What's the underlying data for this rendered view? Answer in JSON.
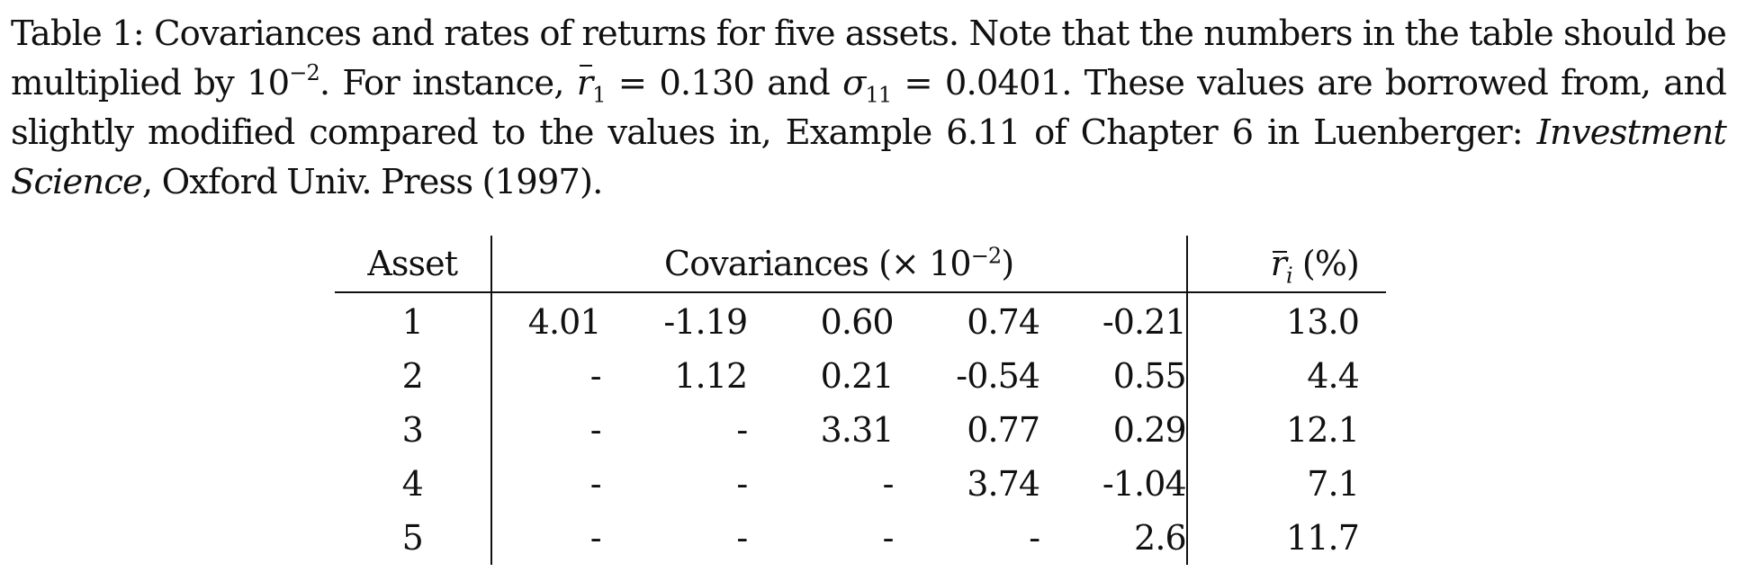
{
  "caption": {
    "label": "Table 1:",
    "text1": " Covariances and rates of returns for five assets. Note that the numbers in the table should be multiplied by ",
    "exponent_base": "10",
    "exponent": "−2",
    "text2": ". For instance, ",
    "r_symbol": "r",
    "r_sub": "1",
    "eq1": " = 0.130 and ",
    "sigma_symbol": "σ",
    "sigma_sub": "11",
    "eq2": " = 0.0401. These values are borrowed from, and slightly modified compared to the values in, Example 6.11 of Chapter 6 in Luenberger: ",
    "book_title": "Investment Science",
    "text3": ", Oxford Univ. Press (1997)."
  },
  "table": {
    "header": {
      "asset": "Asset",
      "covariances_prefix": "Covariances (× ",
      "covariances_base": "10",
      "covariances_exponent": "−2",
      "covariances_suffix": ")",
      "return_symbol": "r",
      "return_sub": "i",
      "return_suffix": " (%)"
    },
    "rows": [
      {
        "asset": "1",
        "cov": [
          "4.01",
          "-1.19",
          "0.60",
          "0.74",
          "-0.21"
        ],
        "ret": "13.0"
      },
      {
        "asset": "2",
        "cov": [
          "-",
          "1.12",
          "0.21",
          "-0.54",
          "0.55"
        ],
        "ret": "4.4"
      },
      {
        "asset": "3",
        "cov": [
          "-",
          "-",
          "3.31",
          "0.77",
          "0.29"
        ],
        "ret": "12.1"
      },
      {
        "asset": "4",
        "cov": [
          "-",
          "-",
          "-",
          "3.74",
          "-1.04"
        ],
        "ret": "7.1"
      },
      {
        "asset": "5",
        "cov": [
          "-",
          "-",
          "-",
          "-",
          "2.6"
        ],
        "ret": "11.7"
      }
    ]
  }
}
